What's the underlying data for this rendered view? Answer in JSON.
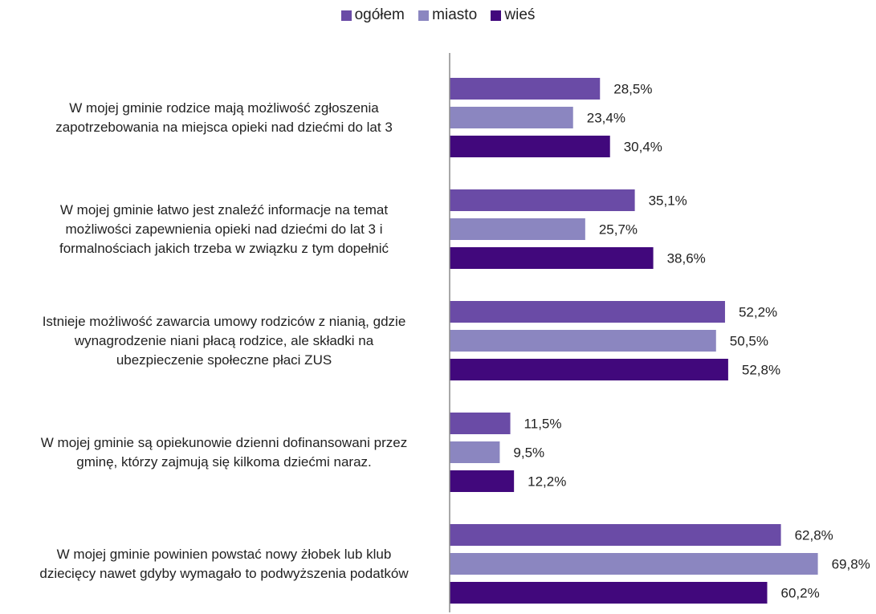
{
  "chart_data": {
    "type": "bar",
    "orientation": "horizontal",
    "categories": [
      "W mojej gminie rodzice mają możliwość zgłoszenia zapotrzebowania na miejsca opieki nad dziećmi do lat 3",
      "W mojej gminie łatwo jest znaleźć informacje na temat możliwości zapewnienia opieki nad dziećmi do lat 3 i formalnościach jakich trzeba w związku z tym dopełnić",
      "Istnieje możliwość zawarcia umowy rodziców z nianią, gdzie wynagrodzenie niani płacą rodzice, ale składki na ubezpieczenie społeczne płaci ZUS",
      "W mojej gminie są opiekunowie dzienni dofinansowani przez gminę, którzy zajmują się kilkoma dziećmi naraz.",
      "W mojej gminie powinien powstać nowy żłobek lub klub dziecięcy nawet gdyby wymagało to podwyższenia podatków"
    ],
    "category_lines": [
      [
        "W mojej gminie rodzice mają możliwość zgłoszenia",
        "zapotrzebowania na miejsca opieki nad dziećmi do lat 3"
      ],
      [
        "W mojej gminie łatwo jest znaleźć informacje na temat",
        "możliwości zapewnienia opieki nad dziećmi do lat 3 i",
        "formalnościach jakich trzeba w związku z tym dopełnić"
      ],
      [
        "Istnieje możliwość zawarcia umowy rodziców z nianią, gdzie",
        "wynagrodzenie niani płacą rodzice, ale składki na",
        "ubezpieczenie społeczne płaci ZUS"
      ],
      [
        "W mojej gminie są opiekunowie dzienni dofinansowani przez",
        "gminę, którzy zajmują się kilkoma dziećmi naraz."
      ],
      [
        "W mojej gminie powinien powstać nowy żłobek lub klub",
        "dziecięcy nawet gdyby wymagało to podwyższenia podatków"
      ]
    ],
    "series": [
      {
        "name": "ogółem",
        "color": "#6a4ba6",
        "values": [
          28.5,
          35.1,
          52.2,
          11.5,
          62.8
        ],
        "labels": [
          "28,5%",
          "35,1%",
          "52,2%",
          "11,5%",
          "62,8%"
        ]
      },
      {
        "name": "miasto",
        "color": "#8b86c0",
        "values": [
          23.4,
          25.7,
          50.5,
          9.5,
          69.8
        ],
        "labels": [
          "23,4%",
          "25,7%",
          "50,5%",
          "9,5%",
          "69,8%"
        ]
      },
      {
        "name": "wieś",
        "color": "#41087c",
        "values": [
          30.4,
          38.6,
          52.8,
          12.2,
          60.2
        ],
        "labels": [
          "30,4%",
          "38,6%",
          "52,8%",
          "12,2%",
          "60,2%"
        ]
      }
    ],
    "unit": "%",
    "xlim": [
      0,
      70
    ],
    "grid": false,
    "legend_position": "top"
  }
}
